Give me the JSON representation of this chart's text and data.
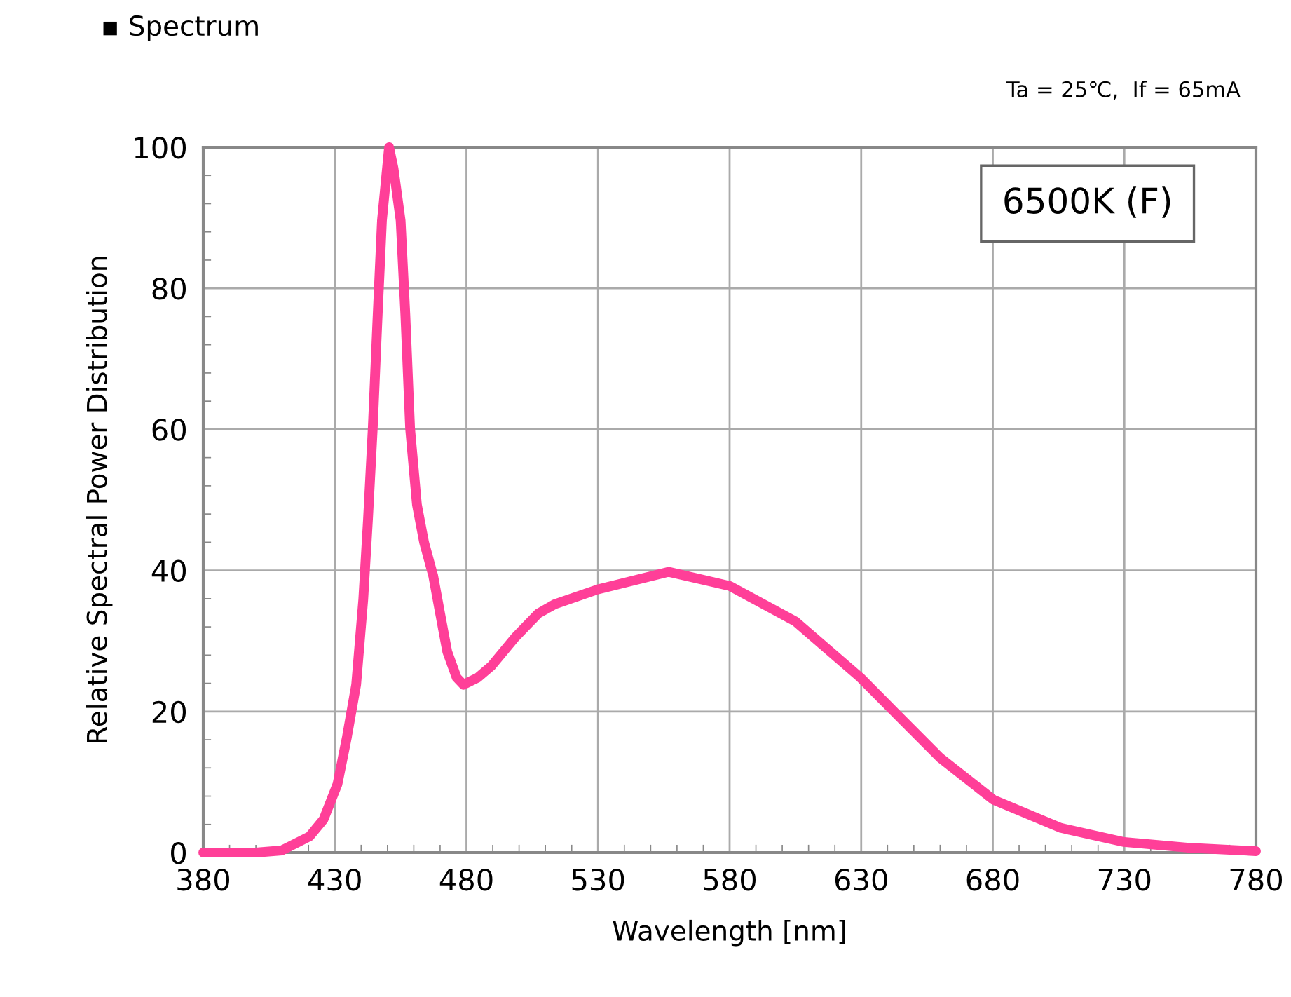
{
  "chart_data": {
    "type": "line",
    "title": "▪ Spectrum",
    "subtitle": "Ta = 25℃,  If = 65mA",
    "xlabel": "Wavelength [nm]",
    "ylabel": "Relative Spectral Power Distribution",
    "annotations": [
      "6500K (F)"
    ],
    "x": [
      380,
      400,
      409.8,
      420.4,
      425.7,
      431,
      434.6,
      438.1,
      440.8,
      442.6,
      444.4,
      446.1,
      447.9,
      450.6,
      452.3,
      455,
      456.8,
      458.6,
      461.2,
      463.9,
      467.4,
      470,
      472.7,
      476.3,
      478.9,
      484.3,
      489.6,
      498.5,
      507.3,
      513.5,
      529.8,
      556.9,
      580,
      604.9,
      629.7,
      643.8,
      659.8,
      680.2,
      705.9,
      729.9,
      753.8,
      780
    ],
    "series": [
      {
        "color": "#ff3f98",
        "values": [
          0,
          0,
          0.3,
          2.3,
          4.7,
          9.7,
          16.4,
          23.8,
          35.9,
          47.3,
          60.1,
          74.8,
          89.6,
          100,
          97,
          89.6,
          76.2,
          60.1,
          49.3,
          44,
          39.2,
          33.9,
          28.5,
          24.8,
          23.8,
          24.8,
          26.5,
          30.5,
          33.9,
          35.2,
          37.3,
          39.8,
          37.8,
          32.8,
          24.8,
          19.5,
          13.5,
          7.5,
          3.5,
          1.5,
          0.7,
          0.2
        ]
      }
    ],
    "xlim": [
      380,
      780
    ],
    "xticks": [
      380,
      430,
      480,
      530,
      580,
      630,
      680,
      730,
      780
    ],
    "ylim": [
      0,
      100
    ],
    "yticks": [
      0,
      20,
      40,
      60,
      80,
      100
    ],
    "grid": true,
    "legend": false,
    "marker": "none",
    "line_style": "solid"
  }
}
